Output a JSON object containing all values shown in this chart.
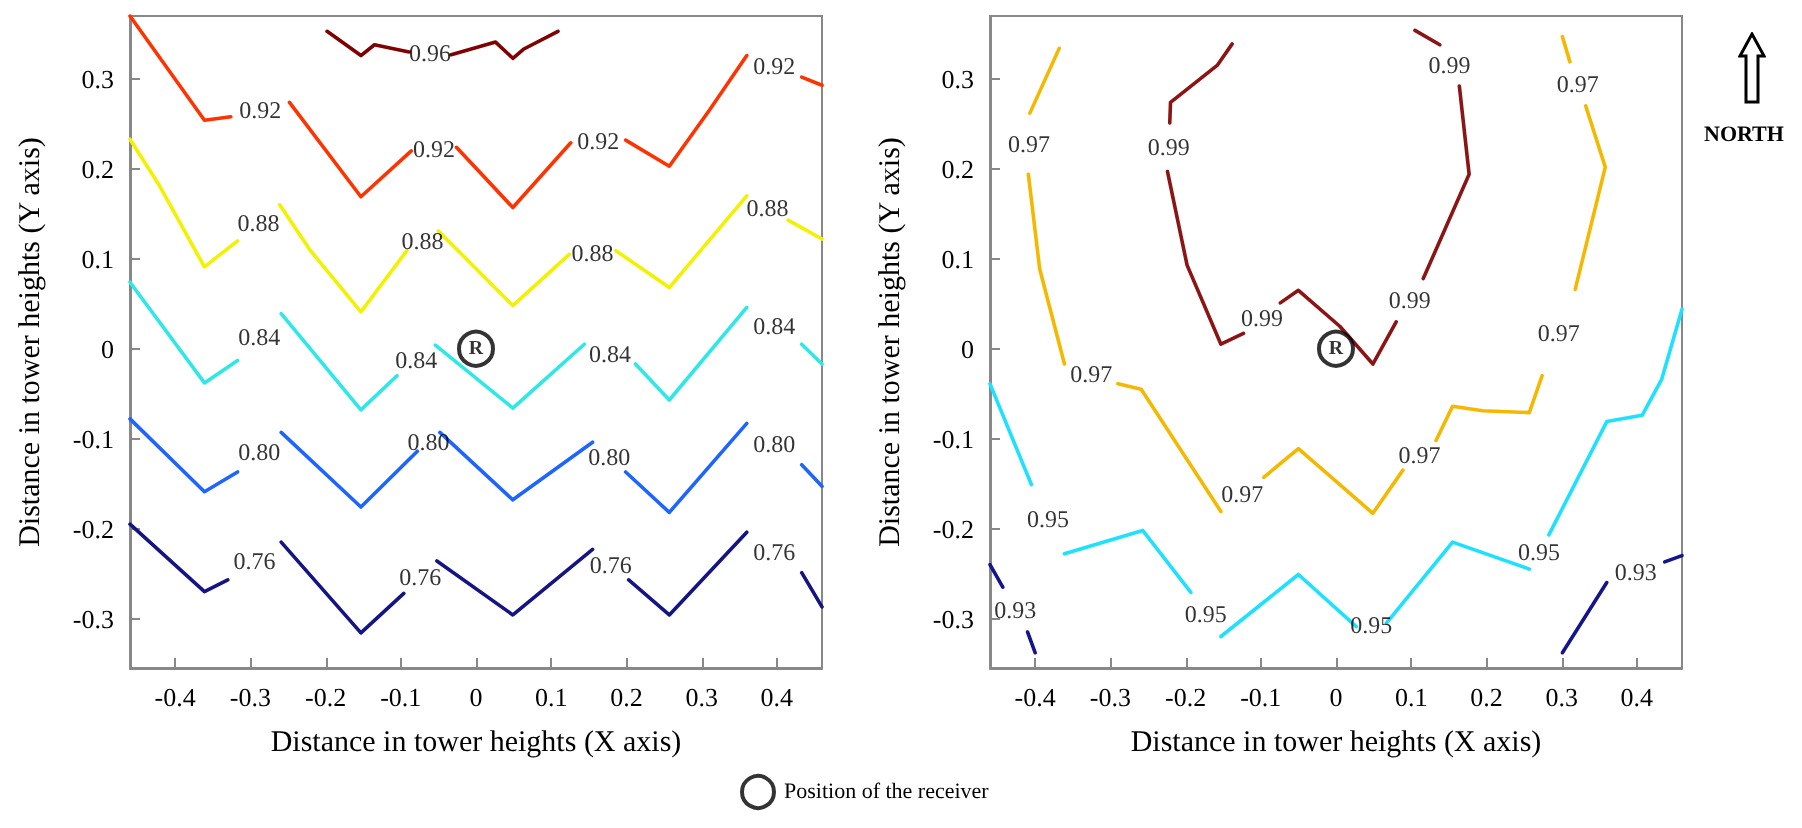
{
  "chart_data": [
    {
      "type": "line",
      "xlabel": "Distance in tower heights (X axis)",
      "ylabel": "Distance in tower heights (Y axis)",
      "xlim": [
        -0.46,
        0.46
      ],
      "ylim": [
        -0.355,
        0.37
      ],
      "xticks": [
        -0.4,
        -0.3,
        -0.2,
        -0.1,
        0,
        0.1,
        0.2,
        0.3,
        0.4
      ],
      "yticks": [
        -0.3,
        -0.2,
        -0.1,
        0,
        0.1,
        0.2,
        0.3
      ],
      "grid": false,
      "marker": "none",
      "legend": "bottom",
      "annotations": [
        {
          "text": "R",
          "x": 0,
          "y": 0
        }
      ],
      "series": [
        {
          "name": "0.96",
          "color": "#7f0000",
          "x": [
            -0.198,
            -0.153,
            -0.135,
            -0.089,
            null,
            -0.033,
            0.026,
            0.049,
            0.063,
            0.109
          ],
          "values": [
            0.353,
            0.326,
            0.338,
            0.33,
            null,
            0.327,
            0.341,
            0.323,
            0.333,
            0.353
          ]
        },
        {
          "name": "0.92",
          "color": "#ff3300",
          "x": [
            -0.46,
            -0.361,
            -0.326,
            null,
            -0.248,
            -0.153,
            -0.086,
            null,
            -0.026,
            0.049,
            0.126,
            null,
            0.199,
            0.257,
            0.31,
            0.36,
            null,
            0.433,
            0.46
          ],
          "values": [
            0.37,
            0.254,
            0.258,
            null,
            0.274,
            0.169,
            0.22,
            null,
            0.224,
            0.157,
            0.229,
            null,
            0.232,
            0.203,
            0.265,
            0.326,
            null,
            0.302,
            0.293
          ]
        },
        {
          "name": "0.88",
          "color": "#f2f200",
          "x": [
            -0.46,
            -0.422,
            -0.361,
            -0.317,
            null,
            -0.261,
            -0.22,
            -0.153,
            -0.092,
            null,
            -0.05,
            0.049,
            0.124,
            null,
            0.186,
            0.257,
            0.36,
            null,
            0.415,
            0.46
          ],
          "values": [
            0.233,
            0.183,
            0.091,
            0.12,
            null,
            0.16,
            0.109,
            0.041,
            0.109,
            null,
            0.131,
            0.048,
            0.105,
            null,
            0.109,
            0.068,
            0.17,
            null,
            0.143,
            0.122
          ]
        },
        {
          "name": "0.84",
          "color": "#2ee8e8",
          "x": [
            -0.46,
            -0.361,
            -0.317,
            null,
            -0.259,
            -0.153,
            -0.105,
            null,
            -0.054,
            0.049,
            0.144,
            null,
            0.212,
            0.257,
            0.36,
            null,
            0.433,
            0.46
          ],
          "values": [
            0.074,
            -0.038,
            -0.013,
            null,
            0.039,
            -0.068,
            -0.03,
            null,
            0.004,
            -0.066,
            0.005,
            null,
            -0.017,
            -0.057,
            0.046,
            null,
            0.005,
            -0.017
          ]
        },
        {
          "name": "0.80",
          "color": "#1e64ff",
          "x": [
            -0.46,
            -0.361,
            -0.317,
            null,
            -0.259,
            -0.153,
            -0.078,
            null,
            -0.048,
            0.049,
            0.155,
            null,
            0.199,
            0.257,
            0.36,
            null,
            0.433,
            0.46
          ],
          "values": [
            -0.078,
            -0.159,
            -0.137,
            null,
            -0.093,
            -0.176,
            -0.114,
            null,
            -0.093,
            -0.168,
            -0.104,
            null,
            -0.137,
            -0.182,
            -0.083,
            null,
            -0.129,
            -0.153
          ]
        },
        {
          "name": "0.76",
          "color": "#141482",
          "x": [
            -0.46,
            -0.361,
            -0.33,
            null,
            -0.259,
            -0.153,
            -0.096,
            null,
            -0.052,
            0.049,
            0.155,
            null,
            0.203,
            0.257,
            0.36,
            null,
            0.433,
            0.46
          ],
          "values": [
            -0.195,
            -0.27,
            -0.257,
            null,
            -0.215,
            -0.316,
            -0.272,
            null,
            -0.236,
            -0.296,
            -0.223,
            null,
            -0.257,
            -0.296,
            -0.204,
            null,
            -0.249,
            -0.287
          ]
        },
        {
          "name": "Position of the receiver",
          "type": "scatter",
          "marker": "circle",
          "color": "#000000",
          "x": [
            0
          ],
          "values": [
            0
          ]
        }
      ]
    },
    {
      "type": "line",
      "xlabel": "Distance in tower heights (X axis)",
      "ylabel": "Distance in tower heights (Y axis)",
      "xlim": [
        -0.46,
        0.46
      ],
      "ylim": [
        -0.355,
        0.37
      ],
      "xticks": [
        -0.4,
        -0.3,
        -0.2,
        -0.1,
        0,
        0.1,
        0.2,
        0.3,
        0.4
      ],
      "yticks": [
        -0.3,
        -0.2,
        -0.1,
        0,
        0.1,
        0.2,
        0.3
      ],
      "grid": false,
      "marker": "none",
      "annotations": [
        {
          "text": "R",
          "x": 0,
          "y": 0
        },
        "NORTH"
      ],
      "series": [
        {
          "name": "0.99",
          "color": "#8b1515",
          "x": [
            -0.138,
            -0.158,
            -0.22,
            -0.221,
            null,
            -0.224,
            -0.198,
            -0.153,
            -0.123,
            null,
            -0.074,
            -0.05,
            0.005,
            0.049,
            0.08,
            null,
            0.116,
            0.177,
            0.164,
            null,
            0.138,
            0.105
          ],
          "values": [
            0.339,
            0.315,
            0.274,
            0.251,
            null,
            0.197,
            0.093,
            0.005,
            0.017,
            null,
            0.051,
            0.065,
            0.025,
            -0.017,
            0.03,
            null,
            0.078,
            0.194,
            0.292,
            null,
            0.338,
            0.354
          ]
        },
        {
          "name": "0.97",
          "color": "#f5b800",
          "x": [
            -0.368,
            -0.407,
            null,
            -0.409,
            -0.394,
            -0.361,
            null,
            -0.29,
            -0.259,
            -0.153,
            null,
            -0.096,
            -0.05,
            0.049,
            0.089,
            null,
            0.133,
            0.155,
            0.195,
            0.257,
            0.274,
            null,
            0.318,
            0.358,
            0.332,
            null,
            0.311,
            0.301
          ],
          "values": [
            0.334,
            0.262,
            null,
            0.194,
            0.089,
            -0.017,
            null,
            -0.039,
            -0.045,
            -0.181,
            null,
            -0.143,
            -0.111,
            -0.183,
            -0.135,
            null,
            -0.102,
            -0.064,
            -0.069,
            -0.071,
            -0.03,
            null,
            0.066,
            0.202,
            0.27,
            null,
            0.319,
            0.347
          ]
        },
        {
          "name": "0.95",
          "color": "#1ee0ff",
          "x": [
            -0.46,
            -0.405,
            null,
            -0.361,
            -0.257,
            -0.193,
            null,
            -0.153,
            -0.05,
            0.027,
            null,
            0.067,
            0.155,
            0.257,
            null,
            0.283,
            0.36,
            0.407,
            0.433,
            0.46
          ],
          "values": [
            -0.039,
            -0.151,
            null,
            -0.228,
            -0.202,
            -0.271,
            null,
            -0.32,
            -0.251,
            -0.309,
            null,
            -0.305,
            -0.215,
            -0.245,
            null,
            -0.207,
            -0.081,
            -0.074,
            -0.034,
            0.044
          ]
        },
        {
          "name": "0.93",
          "color": "#14148c",
          "x": [
            -0.46,
            -0.443,
            null,
            -0.41,
            -0.4
          ],
          "values": [
            -0.24,
            -0.265,
            null,
            -0.315,
            -0.338
          ]
        },
        {
          "name": "0.93",
          "color": "#14148c",
          "x": [
            0.301,
            0.36,
            null,
            0.437,
            0.46
          ],
          "values": [
            -0.338,
            -0.26,
            null,
            -0.237,
            -0.23
          ]
        },
        {
          "type": "scatter",
          "marker": "circle",
          "color": "#000000",
          "x": [
            0
          ],
          "values": [
            0
          ]
        }
      ]
    }
  ]
}
